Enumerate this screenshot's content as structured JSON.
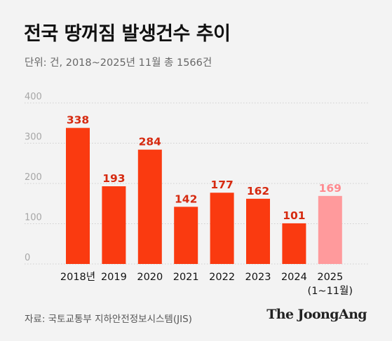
{
  "title": "전국 땅꺼짐 발생건수 추이",
  "subtitle": "단위: 건, 2018~2025년 11월 총 1566건",
  "source": "자료: 국토교통부 지하안전정보시스템(JIS)",
  "brand": "The JoongAng",
  "colors": {
    "bar": "#fa3a10",
    "bar_partial": "#ff9a9c",
    "grid": "#cfcfcf",
    "axis_label": "#a6a6a6",
    "tick_label": "#111111",
    "value_label": "#d62a10",
    "value_label_partial": "#ff8a8f"
  },
  "chart_data": {
    "type": "bar",
    "categories": [
      "2018년",
      "2019",
      "2020",
      "2021",
      "2022",
      "2023",
      "2024",
      "2025\n(1~11월)"
    ],
    "values": [
      338,
      193,
      284,
      142,
      177,
      162,
      101,
      169
    ],
    "value_labels": [
      "338",
      "193",
      "284",
      "142",
      "177",
      "162",
      "101",
      "169"
    ],
    "partial_last": true,
    "ylim": [
      0,
      400
    ],
    "yticks": [
      0,
      100,
      200,
      300,
      400
    ],
    "grid": true,
    "xlabel": "",
    "ylabel": ""
  }
}
